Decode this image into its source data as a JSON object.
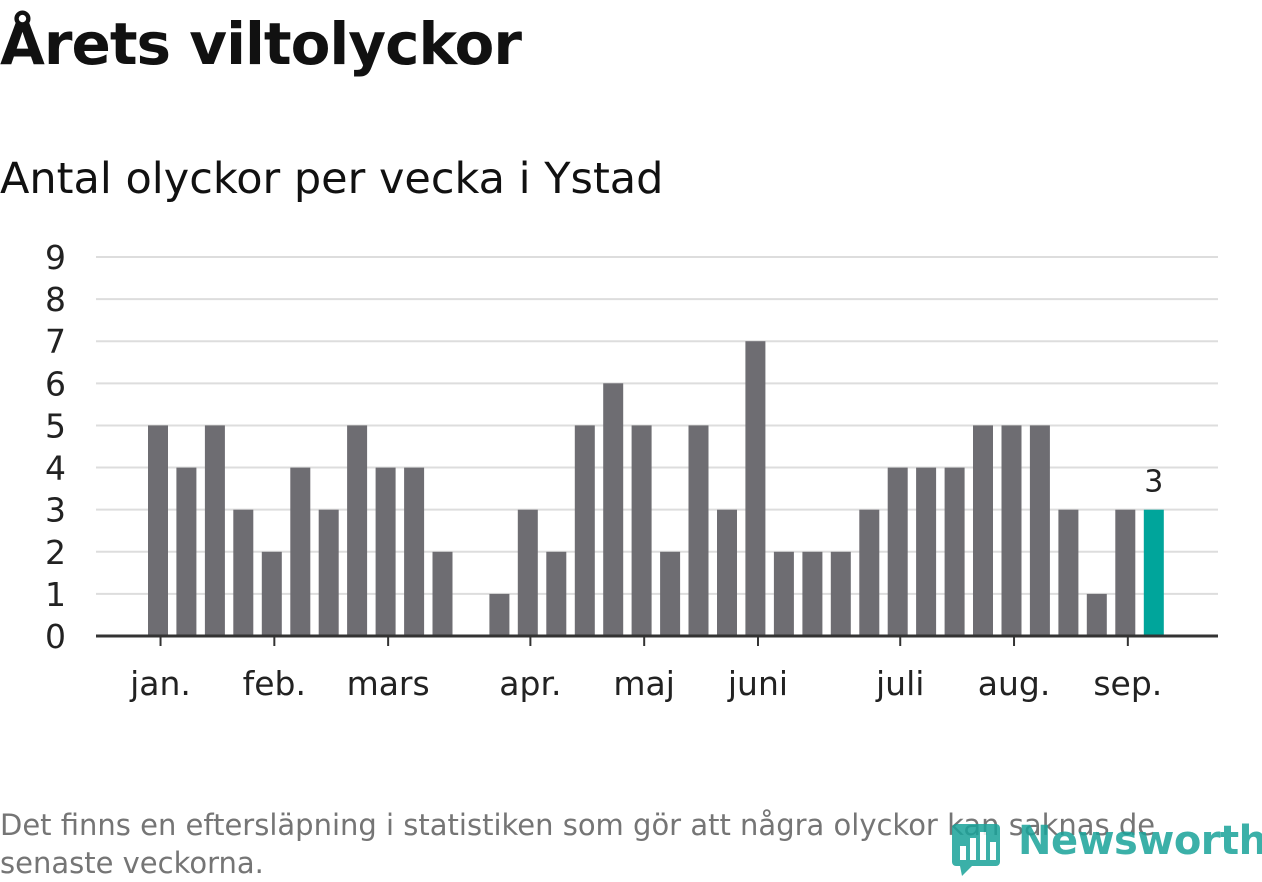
{
  "header": {
    "title": "Årets viltolyckor",
    "subtitle": "Antal olyckor per vecka i Ystad"
  },
  "footer": {
    "note": "Det finns en eftersläpning i statistiken som gör att några olyckor kan saknas de senaste veckorna.",
    "brand": "Newsworthy"
  },
  "chart_data": {
    "type": "bar",
    "title": "Antal olyckor per vecka i Ystad",
    "xlabel": "",
    "ylabel": "",
    "ylim": [
      0,
      9
    ],
    "yticks": [
      "0",
      "1",
      "2",
      "3",
      "4",
      "5",
      "6",
      "7",
      "8",
      "9"
    ],
    "grid": true,
    "values": [
      5,
      4,
      5,
      3,
      2,
      4,
      3,
      5,
      4,
      4,
      2,
      0,
      1,
      3,
      2,
      5,
      6,
      5,
      2,
      5,
      3,
      7,
      2,
      2,
      2,
      3,
      4,
      4,
      4,
      5,
      5,
      5,
      3,
      1,
      3,
      3
    ],
    "month_ticks": [
      {
        "label": "jan.",
        "bar": 0.3
      },
      {
        "label": "feb.",
        "bar": 4.3
      },
      {
        "label": "mars",
        "bar": 8.3
      },
      {
        "label": "apr.",
        "bar": 13.3
      },
      {
        "label": "maj",
        "bar": 17.3
      },
      {
        "label": "juni",
        "bar": 21.3
      },
      {
        "label": "juli",
        "bar": 26.3
      },
      {
        "label": "aug.",
        "bar": 30.3
      },
      {
        "label": "sep.",
        "bar": 34.3
      }
    ],
    "highlight_index": 35,
    "highlight_label": "3",
    "colors": {
      "bar": "#6e6d72",
      "highlight": "#00a59b",
      "grid": "#dddddd",
      "axis": "#333333"
    }
  }
}
